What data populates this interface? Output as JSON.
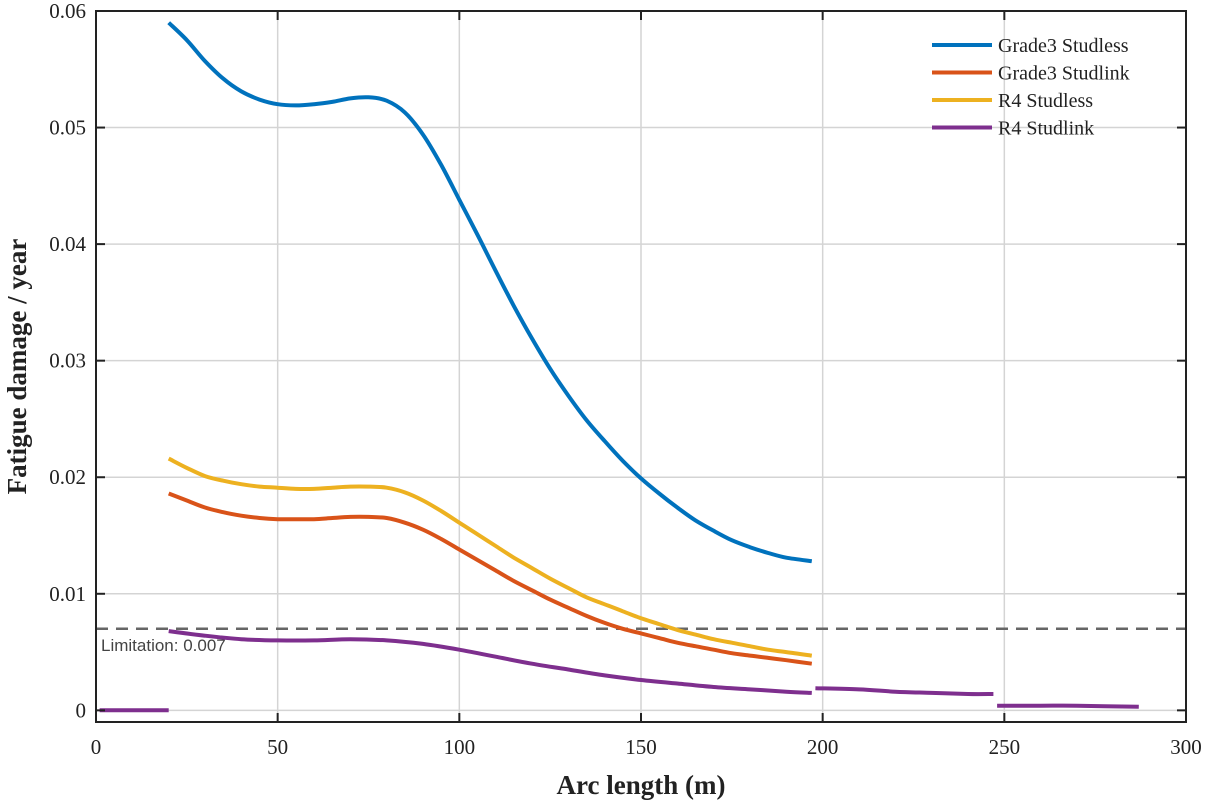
{
  "chart_data": {
    "type": "line",
    "title": "",
    "xlabel": "Arc length (m)",
    "ylabel": "Fatigue damage / year",
    "xlim": [
      0,
      300
    ],
    "ylim": [
      -0.001,
      0.06
    ],
    "xticks": [
      0,
      50,
      100,
      150,
      200,
      250,
      300
    ],
    "xtick_labels": [
      "0",
      "50",
      "100",
      "150",
      "200",
      "250",
      "300"
    ],
    "yticks": [
      0,
      0.01,
      0.02,
      0.03,
      0.04,
      0.05,
      0.06
    ],
    "ytick_labels": [
      "0",
      "0.01",
      "0.02",
      "0.03",
      "0.04",
      "0.05",
      "0.06"
    ],
    "grid": true,
    "legend_position": "top-right",
    "series": [
      {
        "name": "Grade3 Studless",
        "color": "#0072BD",
        "segments": [
          [
            [
              20,
              0.059
            ],
            [
              25,
              0.0575
            ],
            [
              30,
              0.0557
            ],
            [
              35,
              0.0542
            ],
            [
              40,
              0.0531
            ],
            [
              45,
              0.0524
            ],
            [
              50,
              0.052
            ],
            [
              55,
              0.0519
            ],
            [
              60,
              0.052
            ],
            [
              65,
              0.0522
            ],
            [
              70,
              0.0525
            ],
            [
              75,
              0.0526
            ],
            [
              80,
              0.0523
            ],
            [
              85,
              0.0513
            ],
            [
              90,
              0.0494
            ],
            [
              95,
              0.0468
            ],
            [
              100,
              0.0438
            ],
            [
              105,
              0.0408
            ],
            [
              110,
              0.0377
            ],
            [
              115,
              0.0347
            ],
            [
              120,
              0.0319
            ],
            [
              125,
              0.0293
            ],
            [
              130,
              0.027
            ],
            [
              135,
              0.0249
            ],
            [
              140,
              0.0231
            ],
            [
              145,
              0.0214
            ],
            [
              150,
              0.0199
            ],
            [
              155,
              0.0186
            ],
            [
              160,
              0.0174
            ],
            [
              165,
              0.0163
            ],
            [
              170,
              0.0154
            ],
            [
              175,
              0.0146
            ],
            [
              180,
              0.014
            ],
            [
              185,
              0.0135
            ],
            [
              190,
              0.0131
            ],
            [
              197,
              0.0128
            ]
          ]
        ]
      },
      {
        "name": "Grade3 Studlink",
        "color": "#D95319",
        "segments": [
          [
            [
              20,
              0.0186
            ],
            [
              25,
              0.018
            ],
            [
              30,
              0.0174
            ],
            [
              35,
              0.017
            ],
            [
              40,
              0.0167
            ],
            [
              45,
              0.0165
            ],
            [
              50,
              0.0164
            ],
            [
              55,
              0.0164
            ],
            [
              60,
              0.0164
            ],
            [
              65,
              0.0165
            ],
            [
              70,
              0.0166
            ],
            [
              75,
              0.0166
            ],
            [
              80,
              0.0165
            ],
            [
              85,
              0.0161
            ],
            [
              90,
              0.0155
            ],
            [
              95,
              0.0147
            ],
            [
              100,
              0.0138
            ],
            [
              105,
              0.0129
            ],
            [
              110,
              0.012
            ],
            [
              115,
              0.0111
            ],
            [
              120,
              0.0103
            ],
            [
              125,
              0.0095
            ],
            [
              130,
              0.0088
            ],
            [
              135,
              0.0081
            ],
            [
              140,
              0.0075
            ],
            [
              145,
              0.007
            ],
            [
              150,
              0.0066
            ],
            [
              155,
              0.0062
            ],
            [
              160,
              0.0058
            ],
            [
              165,
              0.0055
            ],
            [
              170,
              0.0052
            ],
            [
              175,
              0.0049
            ],
            [
              180,
              0.0047
            ],
            [
              185,
              0.0045
            ],
            [
              190,
              0.0043
            ],
            [
              197,
              0.004
            ]
          ]
        ]
      },
      {
        "name": "R4 Studless",
        "color": "#EDB120",
        "segments": [
          [
            [
              20,
              0.0216
            ],
            [
              25,
              0.0208
            ],
            [
              30,
              0.0201
            ],
            [
              35,
              0.0197
            ],
            [
              40,
              0.0194
            ],
            [
              45,
              0.0192
            ],
            [
              50,
              0.0191
            ],
            [
              55,
              0.019
            ],
            [
              60,
              0.019
            ],
            [
              65,
              0.0191
            ],
            [
              70,
              0.0192
            ],
            [
              75,
              0.0192
            ],
            [
              80,
              0.0191
            ],
            [
              85,
              0.0187
            ],
            [
              90,
              0.018
            ],
            [
              95,
              0.0171
            ],
            [
              100,
              0.0161
            ],
            [
              105,
              0.0151
            ],
            [
              110,
              0.0141
            ],
            [
              115,
              0.0131
            ],
            [
              120,
              0.0122
            ],
            [
              125,
              0.0113
            ],
            [
              130,
              0.0105
            ],
            [
              135,
              0.0097
            ],
            [
              140,
              0.0091
            ],
            [
              145,
              0.0085
            ],
            [
              150,
              0.0079
            ],
            [
              155,
              0.0074
            ],
            [
              160,
              0.0069
            ],
            [
              165,
              0.0065
            ],
            [
              170,
              0.0061
            ],
            [
              175,
              0.0058
            ],
            [
              180,
              0.0055
            ],
            [
              185,
              0.0052
            ],
            [
              190,
              0.005
            ],
            [
              197,
              0.0047
            ]
          ]
        ]
      },
      {
        "name": "R4 Studlink",
        "color": "#7E2F8E",
        "segments": [
          [
            [
              1,
              0.0
            ],
            [
              20,
              0.0
            ]
          ],
          [
            [
              20,
              0.0068
            ],
            [
              30,
              0.0064
            ],
            [
              40,
              0.0061
            ],
            [
              50,
              0.006
            ],
            [
              60,
              0.006
            ],
            [
              70,
              0.0061
            ],
            [
              80,
              0.006
            ],
            [
              90,
              0.0057
            ],
            [
              100,
              0.0052
            ],
            [
              110,
              0.0046
            ],
            [
              120,
              0.004
            ],
            [
              130,
              0.0035
            ],
            [
              140,
              0.003
            ],
            [
              150,
              0.0026
            ],
            [
              160,
              0.0023
            ],
            [
              170,
              0.002
            ],
            [
              180,
              0.0018
            ],
            [
              190,
              0.0016
            ],
            [
              197,
              0.0015
            ]
          ],
          [
            [
              198,
              0.0019
            ],
            [
              210,
              0.0018
            ],
            [
              220,
              0.0016
            ],
            [
              230,
              0.0015
            ],
            [
              240,
              0.0014
            ],
            [
              247,
              0.0014
            ]
          ],
          [
            [
              248,
              0.0004
            ],
            [
              260,
              0.0004
            ],
            [
              270,
              0.0004
            ],
            [
              287,
              0.0003
            ]
          ]
        ]
      }
    ],
    "reference_line": {
      "y": 0.007,
      "color": "#666666",
      "style": "dashed",
      "label": "Limitation: 0.007"
    }
  }
}
